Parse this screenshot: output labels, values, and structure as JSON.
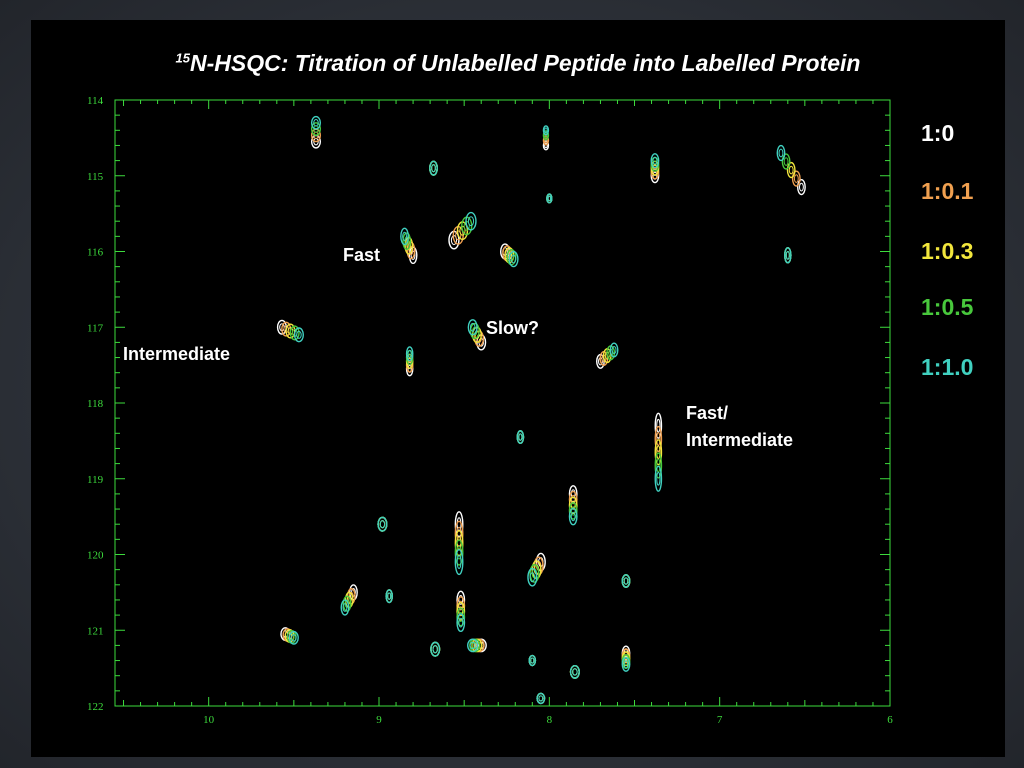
{
  "title_sup": "15",
  "title_main": "N-HSQC: Titration of Unlabelled Peptide into Labelled Protein",
  "colors": {
    "axis": "#3ddc3d",
    "background": "#000000"
  },
  "legend": [
    {
      "label": "1:0",
      "color": "#ffffff"
    },
    {
      "label": "1:0.1",
      "color": "#f0a050"
    },
    {
      "label": "1:0.3",
      "color": "#f2e63c"
    },
    {
      "label": "1:0.5",
      "color": "#48c83c"
    },
    {
      "label": "1:1.0",
      "color": "#40d0c0"
    }
  ],
  "annotations": [
    {
      "name": "annotation-intermediate",
      "text": "Intermediate"
    },
    {
      "name": "annotation-fast",
      "text": "Fast"
    },
    {
      "name": "annotation-slow",
      "text": "Slow?"
    },
    {
      "name": "annotation-fast-line1",
      "text": "Fast/"
    },
    {
      "name": "annotation-fast-line2",
      "text": "Intermediate"
    }
  ],
  "chart_data": {
    "type": "scatter",
    "xlim": [
      10.55,
      6.0
    ],
    "ylim": [
      114,
      122
    ],
    "x_reversed": true,
    "y_reversed": true,
    "x_ticks": [
      10,
      9,
      8,
      7,
      6
    ],
    "y_ticks": [
      114,
      115,
      116,
      117,
      118,
      119,
      120,
      121,
      122
    ],
    "peaks": [
      {
        "x": 9.37,
        "y": 114.55,
        "trail": [
          0,
          -0.25
        ],
        "c": 4,
        "r": [
          7,
          10
        ]
      },
      {
        "x": 8.68,
        "y": 114.9,
        "trail": [
          0,
          0
        ],
        "c": 5,
        "r": [
          6,
          11
        ]
      },
      {
        "x": 8.02,
        "y": 114.6,
        "trail": [
          0,
          -0.2
        ],
        "c": 4,
        "r": [
          4,
          7
        ]
      },
      {
        "x": 7.38,
        "y": 115.0,
        "trail": [
          0,
          -0.2
        ],
        "c": 5,
        "r": [
          6,
          11
        ]
      },
      {
        "x": 6.52,
        "y": 115.15,
        "trail": [
          0.12,
          -0.45
        ],
        "c": 5,
        "r": [
          6,
          12
        ]
      },
      {
        "x": 8.56,
        "y": 115.85,
        "trail": [
          -0.1,
          -0.25
        ],
        "c": 5,
        "r": [
          8,
          14
        ]
      },
      {
        "x": 8.26,
        "y": 116.0,
        "trail": [
          -0.05,
          0.1
        ],
        "c": 5,
        "r": [
          7,
          12
        ]
      },
      {
        "x": 8.8,
        "y": 116.05,
        "trail": [
          0.05,
          -0.25
        ],
        "c": 5,
        "r": [
          6,
          13
        ]
      },
      {
        "x": 8.0,
        "y": 115.3,
        "trail": [
          0,
          0
        ],
        "c": 4,
        "r": [
          4,
          7
        ]
      },
      {
        "x": 6.6,
        "y": 116.05,
        "trail": [
          0,
          0
        ],
        "c": 4,
        "r": [
          5,
          12
        ]
      },
      {
        "x": 9.57,
        "y": 117.0,
        "trail": [
          -0.1,
          0.1
        ],
        "c": 5,
        "r": [
          7,
          11
        ]
      },
      {
        "x": 8.4,
        "y": 117.2,
        "trail": [
          0.05,
          -0.2
        ],
        "c": 5,
        "r": [
          7,
          12
        ]
      },
      {
        "x": 8.82,
        "y": 117.55,
        "trail": [
          0,
          -0.2
        ],
        "c": 5,
        "r": [
          5,
          11
        ]
      },
      {
        "x": 7.7,
        "y": 117.45,
        "trail": [
          -0.08,
          -0.15
        ],
        "c": 5,
        "r": [
          6,
          11
        ]
      },
      {
        "x": 7.36,
        "y": 118.3,
        "trail": [
          0,
          0.7
        ],
        "c": 5,
        "r": [
          5,
          20
        ]
      },
      {
        "x": 8.17,
        "y": 118.45,
        "trail": [
          0,
          0
        ],
        "c": 4,
        "r": [
          5,
          10
        ]
      },
      {
        "x": 7.86,
        "y": 119.2,
        "trail": [
          0,
          0.3
        ],
        "c": 5,
        "r": [
          6,
          13
        ]
      },
      {
        "x": 8.98,
        "y": 119.6,
        "trail": [
          0,
          0
        ],
        "c": 5,
        "r": [
          7,
          11
        ]
      },
      {
        "x": 8.53,
        "y": 119.6,
        "trail": [
          0,
          0.5
        ],
        "c": 5,
        "r": [
          6,
          20
        ]
      },
      {
        "x": 8.05,
        "y": 120.1,
        "trail": [
          0.05,
          0.2
        ],
        "c": 5,
        "r": [
          7,
          14
        ]
      },
      {
        "x": 9.15,
        "y": 120.5,
        "trail": [
          0.05,
          0.2
        ],
        "c": 5,
        "r": [
          6,
          12
        ]
      },
      {
        "x": 8.94,
        "y": 120.55,
        "trail": [
          0,
          0
        ],
        "c": 4,
        "r": [
          5,
          10
        ]
      },
      {
        "x": 8.52,
        "y": 120.6,
        "trail": [
          0,
          0.3
        ],
        "c": 5,
        "r": [
          6,
          14
        ]
      },
      {
        "x": 7.55,
        "y": 120.35,
        "trail": [
          0,
          0
        ],
        "c": 5,
        "r": [
          6,
          10
        ]
      },
      {
        "x": 9.55,
        "y": 121.05,
        "trail": [
          -0.05,
          0.05
        ],
        "c": 5,
        "r": [
          7,
          10
        ]
      },
      {
        "x": 8.67,
        "y": 121.25,
        "trail": [
          0,
          0
        ],
        "c": 5,
        "r": [
          7,
          11
        ]
      },
      {
        "x": 8.4,
        "y": 121.2,
        "trail": [
          0.05,
          0
        ],
        "c": 5,
        "r": [
          8,
          10
        ]
      },
      {
        "x": 7.55,
        "y": 121.3,
        "trail": [
          0,
          0.15
        ],
        "c": 5,
        "r": [
          6,
          11
        ]
      },
      {
        "x": 8.1,
        "y": 121.4,
        "trail": [
          0,
          0
        ],
        "c": 4,
        "r": [
          5,
          8
        ]
      },
      {
        "x": 7.85,
        "y": 121.55,
        "trail": [
          0,
          0
        ],
        "c": 5,
        "r": [
          7,
          10
        ]
      },
      {
        "x": 8.05,
        "y": 121.9,
        "trail": [
          0,
          0
        ],
        "c": 4,
        "r": [
          6,
          8
        ]
      }
    ]
  }
}
